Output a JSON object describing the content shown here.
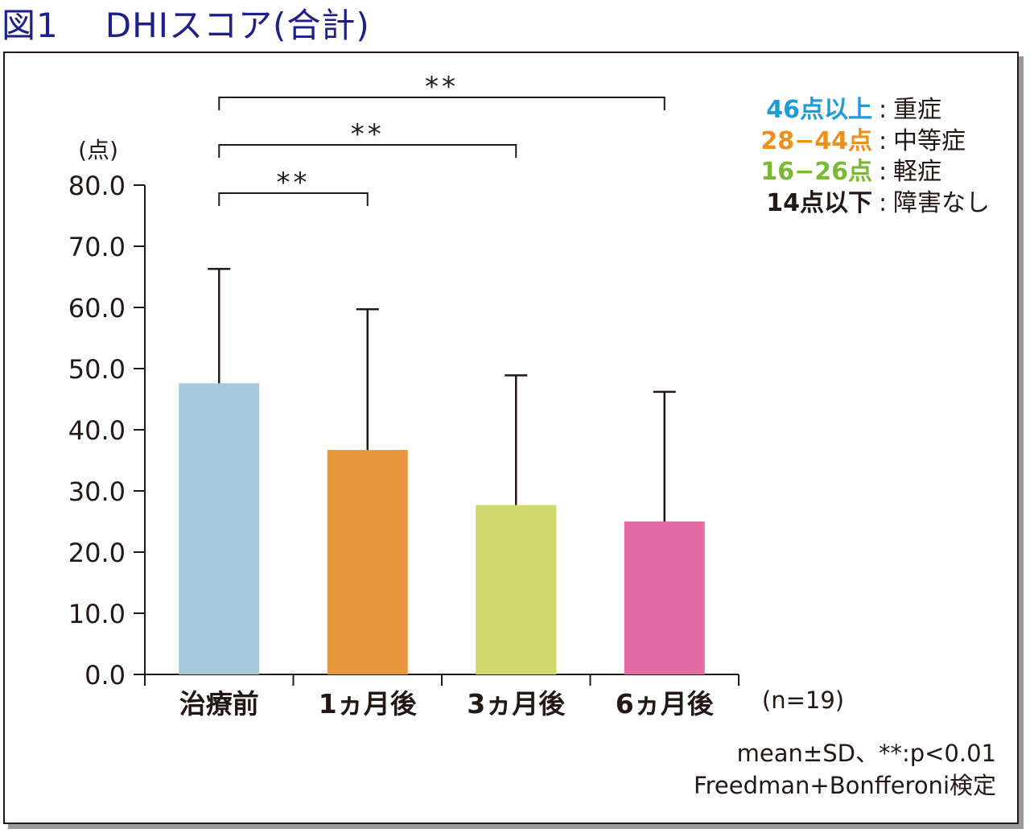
{
  "figure": {
    "label": "図1",
    "title": "DHIスコア(合計)"
  },
  "chart_data": {
    "type": "bar",
    "title": "DHIスコア(合計)",
    "ylabel": "(点)",
    "xlabel": "",
    "categories": [
      "治療前",
      "1ヵ月後",
      "3ヵ月後",
      "6ヵ月後"
    ],
    "values": [
      47.6,
      36.7,
      27.7,
      25.0
    ],
    "error_upper": [
      66.3,
      59.7,
      48.9,
      46.2
    ],
    "colors": [
      "#a4cadb",
      "#e9973d",
      "#cfd86a",
      "#e26ba4"
    ],
    "ylim": [
      0,
      80
    ],
    "yticks": [
      "0.0",
      "10.0",
      "20.0",
      "30.0",
      "40.0",
      "50.0",
      "60.0",
      "70.0",
      "80.0"
    ],
    "tick_values": [
      0,
      10,
      20,
      30,
      40,
      50,
      60,
      70,
      80
    ],
    "n_label": "(n=19)",
    "significance": [
      {
        "from": 0,
        "to": 1,
        "label": "**"
      },
      {
        "from": 0,
        "to": 2,
        "label": "**"
      },
      {
        "from": 0,
        "to": 3,
        "label": "**"
      }
    ],
    "grid": false,
    "legend_position": "top-right"
  },
  "legend": [
    {
      "range": "46点以上",
      "sep": ":",
      "severity": "重症",
      "color": "#1f9bd7"
    },
    {
      "range": "28−44点",
      "sep": ":",
      "severity": "中等症",
      "color": "#ee8f1c"
    },
    {
      "range": "16−26点",
      "sep": ":",
      "severity": "軽症",
      "color": "#7ab934"
    },
    {
      "range": "14点以下",
      "sep": ":",
      "severity": "障害なし",
      "color": "#231815"
    }
  ],
  "notes": {
    "line1": "mean±SD、**:p<0.01",
    "line2": "Freedman+Bonfferoni検定"
  }
}
